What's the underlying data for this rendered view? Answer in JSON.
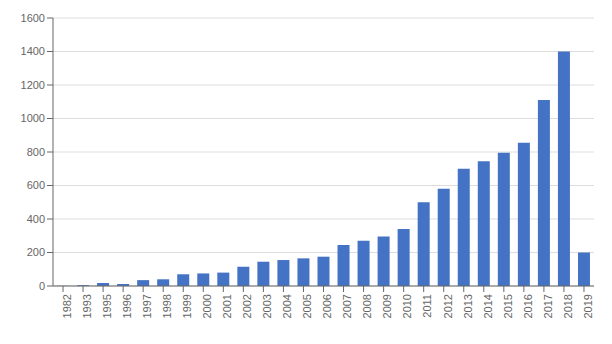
{
  "chart_data": {
    "type": "bar",
    "categories": [
      "1982",
      "1993",
      "1995",
      "1996",
      "1997",
      "1998",
      "1999",
      "2000",
      "2001",
      "2002",
      "2003",
      "2004",
      "2005",
      "2006",
      "2007",
      "2008",
      "2009",
      "2010",
      "2011",
      "2012",
      "2013",
      "2014",
      "2015",
      "2016",
      "2017",
      "2018",
      "2019"
    ],
    "values": [
      1,
      5,
      18,
      12,
      35,
      40,
      70,
      75,
      80,
      115,
      145,
      155,
      165,
      175,
      245,
      270,
      295,
      340,
      500,
      580,
      700,
      745,
      795,
      855,
      1110,
      1400,
      200
    ],
    "color": "#4472C4",
    "ylim": [
      0,
      1600
    ],
    "yticks": [
      0,
      200,
      400,
      600,
      800,
      1000,
      1200,
      1400,
      1600
    ],
    "grid": true
  }
}
